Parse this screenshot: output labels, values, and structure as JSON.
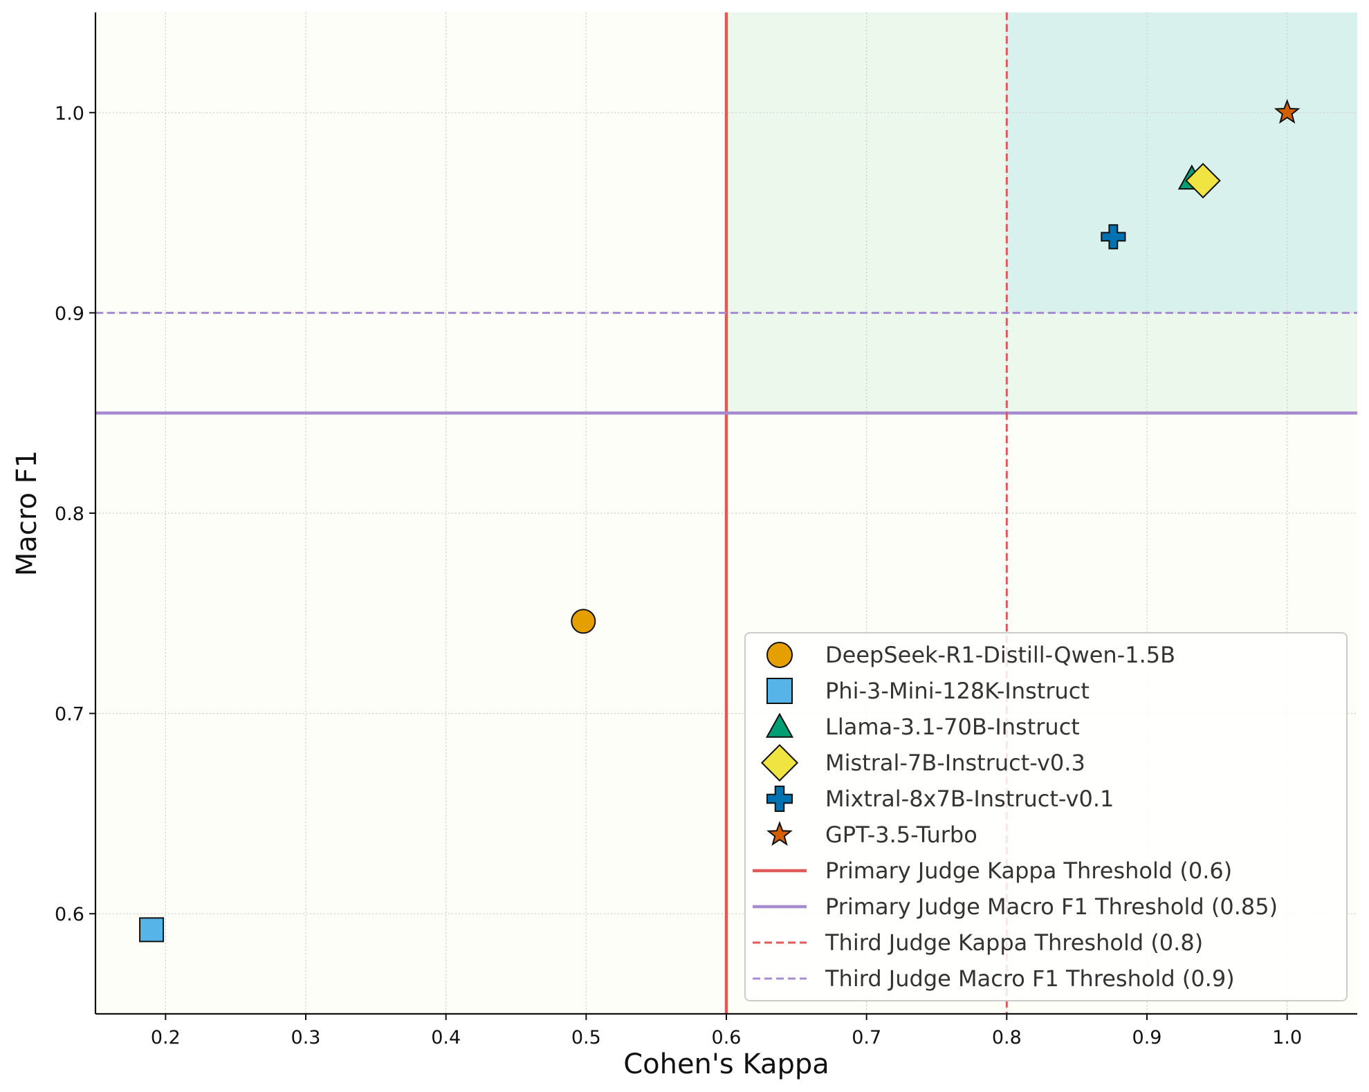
{
  "chart_data": {
    "type": "scatter",
    "title": "",
    "xlabel": "Cohen's Kappa",
    "ylabel": "Macro F1",
    "xlim": [
      0.15,
      1.05
    ],
    "ylim": [
      0.55,
      1.05
    ],
    "xticks": [
      0.2,
      0.3,
      0.4,
      0.5,
      0.6,
      0.7,
      0.8,
      0.9,
      1.0
    ],
    "yticks": [
      0.6,
      0.7,
      0.8,
      0.9,
      1.0
    ],
    "xtick_labels": [
      "0.2",
      "0.3",
      "0.4",
      "0.5",
      "0.6",
      "0.7",
      "0.8",
      "0.9",
      "1.0"
    ],
    "ytick_labels": [
      "0.6",
      "0.7",
      "0.8",
      "0.9",
      "1.0"
    ],
    "grid": true,
    "legend_position": "bottom-right",
    "regions": [
      {
        "name": "fail-region",
        "x": [
          0.15,
          0.6
        ],
        "y": [
          0.55,
          0.85
        ],
        "color": "#fbe9ea"
      },
      {
        "name": "neutral-region",
        "x": [
          0.15,
          1.05
        ],
        "y": [
          0.55,
          1.05
        ],
        "color": "#fdfef8"
      },
      {
        "name": "primary-pass-region",
        "x": [
          0.6,
          1.05
        ],
        "y": [
          0.85,
          1.05
        ],
        "color": "#ebf8eb"
      },
      {
        "name": "third-pass-region",
        "x": [
          0.8,
          1.05
        ],
        "y": [
          0.9,
          1.05
        ],
        "color": "#d9f1ec"
      }
    ],
    "series": [
      {
        "name": "DeepSeek-R1-Distill-Qwen-1.5B",
        "marker": "circle",
        "color": "#e69f00",
        "x": 0.498,
        "y": 0.746
      },
      {
        "name": "Phi-3-Mini-128K-Instruct",
        "marker": "square",
        "color": "#56b4e9",
        "x": 0.19,
        "y": 0.592
      },
      {
        "name": "Llama-3.1-70B-Instruct",
        "marker": "triangle",
        "color": "#009e73",
        "x": 0.932,
        "y": 0.967
      },
      {
        "name": "Mistral-7B-Instruct-v0.3",
        "marker": "diamond",
        "color": "#f0e442",
        "x": 0.94,
        "y": 0.966
      },
      {
        "name": "Mixtral-8x7B-Instruct-v0.1",
        "marker": "plus",
        "color": "#0072b2",
        "x": 0.876,
        "y": 0.938
      },
      {
        "name": "GPT-3.5-Turbo",
        "marker": "star",
        "color": "#d55e00",
        "x": 1.0,
        "y": 1.0
      }
    ],
    "thresholds": [
      {
        "name": "Primary Judge Kappa Threshold (0.6)",
        "axis": "x",
        "value": 0.6,
        "style": "solid",
        "color": "#e05a5a"
      },
      {
        "name": "Primary Judge Macro F1 Threshold (0.85)",
        "axis": "y",
        "value": 0.85,
        "style": "solid",
        "color": "#a68bd0"
      },
      {
        "name": "Third Judge Kappa Threshold (0.8)",
        "axis": "x",
        "value": 0.8,
        "style": "dashed",
        "color": "#e05a5a"
      },
      {
        "name": "Third Judge Macro F1 Threshold (0.9)",
        "axis": "y",
        "value": 0.9,
        "style": "dashed",
        "color": "#a68bd0"
      }
    ]
  }
}
